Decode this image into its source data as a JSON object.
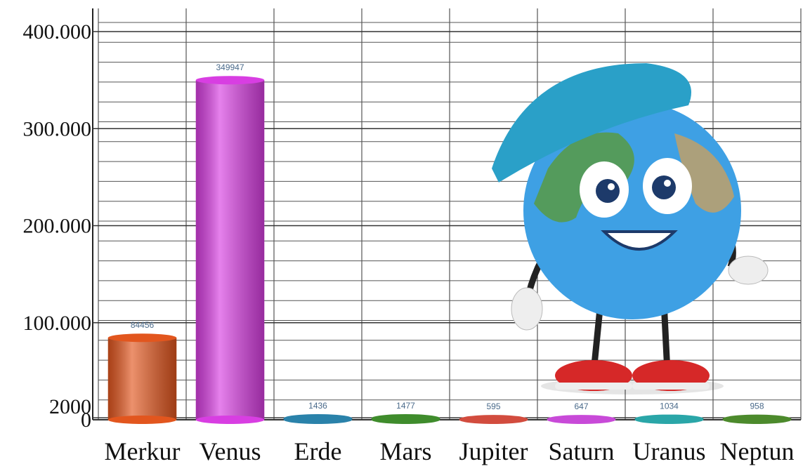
{
  "chart_data": {
    "type": "bar",
    "categories": [
      "Merkur",
      "Venus",
      "Erde",
      "Mars",
      "Jupiter",
      "Saturn",
      "Uranus",
      "Neptun"
    ],
    "values": [
      84456,
      349947,
      1436,
      1477,
      595,
      647,
      1034,
      958
    ],
    "colors": [
      "#e2561e",
      "#d83ee2",
      "#2a82aa",
      "#3f8c2c",
      "#d24c3e",
      "#c84ad8",
      "#2aa6a8",
      "#4c8a2c"
    ],
    "ylim": [
      0,
      400000
    ],
    "yticks": [
      0,
      2000,
      {
        "value": 100000,
        "label": "100.000"
      },
      {
        "value": 200000,
        "label": "200.000"
      },
      {
        "value": 300000,
        "label": "300.000"
      },
      {
        "value": 400000,
        "label": "400.000"
      }
    ],
    "grid": true
  }
}
